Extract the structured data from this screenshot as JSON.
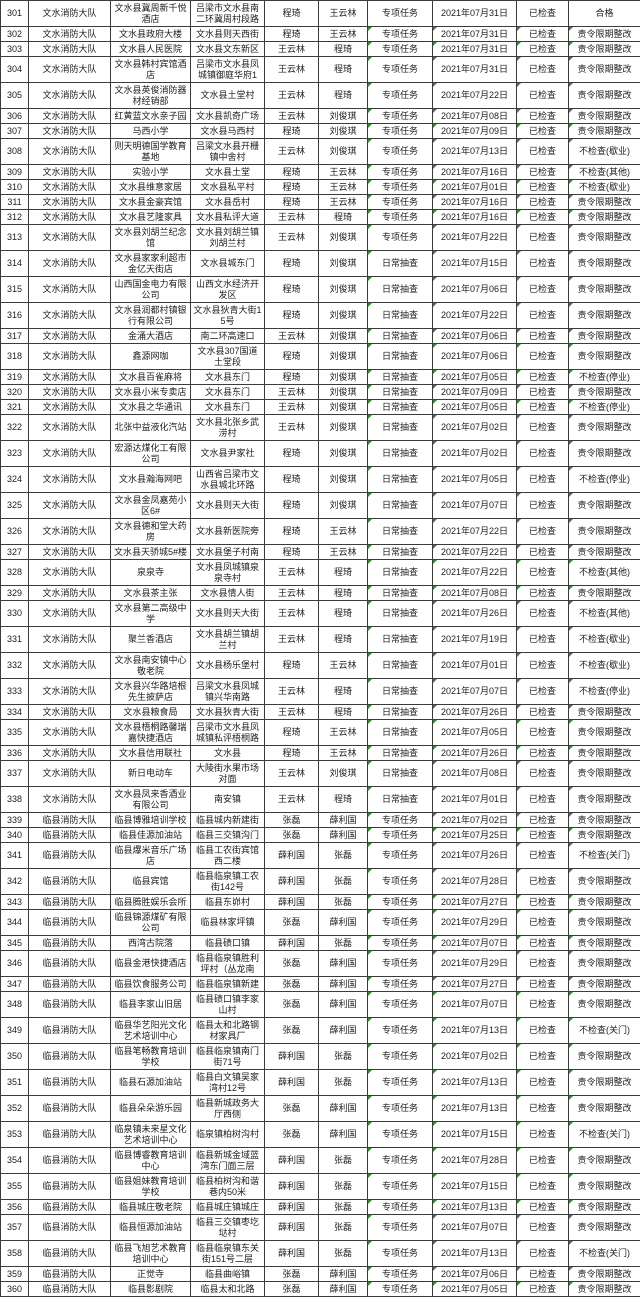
{
  "colors": {
    "border": "#3b3b3b",
    "text": "#1c1c1c",
    "flag_triangle_green": "#2e8b2e"
  },
  "table": {
    "row_fields": [
      "seq",
      "brigade",
      "unit_name",
      "address",
      "inspector1",
      "inspector2",
      "task_type",
      "date",
      "status",
      "result"
    ],
    "flagged_columns": [
      6,
      7,
      8,
      9
    ],
    "rows": [
      [
        "301",
        "文水消防大队",
        "文水县冀周新千悦酒店",
        "吕梁市文水县南二环冀周村段路",
        "程琦",
        "王云林",
        "专项任务",
        "2021年07月31日",
        "已检查",
        "合格"
      ],
      [
        "302",
        "文水消防大队",
        "文水县政府大楼",
        "文水县则天西街",
        "程琦",
        "王云林",
        "专项任务",
        "2021年07月31日",
        "已检查",
        "责令限期整改"
      ],
      [
        "303",
        "文水消防大队",
        "文水县人民医院",
        "文水县文东新区",
        "王云林",
        "程琦",
        "专项任务",
        "2021年07月31日",
        "已检查",
        "责令限期整改"
      ],
      [
        "304",
        "文水消防大队",
        "文水县韩村宾馆酒店",
        "吕梁市文水县凤城镇御庭华府1",
        "王云林",
        "程琦",
        "专项任务",
        "2021年07月31日",
        "已检查",
        "责令限期整改"
      ],
      [
        "305",
        "文水消防大队",
        "文水县英俊消防器材经销部",
        "文水县土堂村",
        "王云林",
        "程琦",
        "专项任务",
        "2021年07月22日",
        "已检查",
        "责令限期整改"
      ],
      [
        "306",
        "文水消防大队",
        "红黄蓝文水亲子园",
        "文水县凯奇广场",
        "王云林",
        "刘俊琪",
        "专项任务",
        "2021年07月08日",
        "已检查",
        "责令限期整改"
      ],
      [
        "307",
        "文水消防大队",
        "马西小学",
        "文水县马西村",
        "程琦",
        "刘俊琪",
        "专项任务",
        "2021年07月09日",
        "已检查",
        "责令限期整改"
      ],
      [
        "308",
        "文水消防大队",
        "则天明德国学教育基地",
        "吕梁文水县开栅镇中舍村",
        "王云林",
        "刘俊琪",
        "专项任务",
        "2021年07月13日",
        "已检查",
        "不检查(歇业)"
      ],
      [
        "309",
        "文水消防大队",
        "实验小学",
        "文水县土堂",
        "程琦",
        "王云林",
        "专项任务",
        "2021年07月16日",
        "已检查",
        "不检查(其他)"
      ],
      [
        "310",
        "文水消防大队",
        "文水县维意家居",
        "文水县私平村",
        "程琦",
        "王云林",
        "专项任务",
        "2021年07月01日",
        "已检查",
        "不检查(歇业)"
      ],
      [
        "311",
        "文水消防大队",
        "文水县金豪宾馆",
        "文水县岳村",
        "程琦",
        "王云林",
        "专项任务",
        "2021年07月16日",
        "已检查",
        "责令限期整改"
      ],
      [
        "312",
        "文水消防大队",
        "文水县艺隆家具",
        "文水县私评大道",
        "王云林",
        "程琦",
        "专项任务",
        "2021年07月16日",
        "已检查",
        "责令限期整改"
      ],
      [
        "313",
        "文水消防大队",
        "文水县刘胡兰纪念馆",
        "文水县刘胡兰镇刘胡兰村",
        "王云林",
        "刘俊琪",
        "专项任务",
        "2021年07月22日",
        "已检查",
        "责令限期整改"
      ],
      [
        "314",
        "文水消防大队",
        "文水县家家利超市金亿天街店",
        "文水县城东门",
        "程琦",
        "刘俊琪",
        "日常抽查",
        "2021年07月15日",
        "已检查",
        "责令限期整改"
      ],
      [
        "315",
        "文水消防大队",
        "山西国金电力有限公司",
        "山西文水经济开发区",
        "程琦",
        "刘俊琪",
        "日常抽查",
        "2021年07月06日",
        "已检查",
        "责令限期整改"
      ],
      [
        "316",
        "文水消防大队",
        "文水县润都村镇银行有限公司",
        "文水县狄青大街15号",
        "程琦",
        "刘俊琪",
        "日常抽查",
        "2021年07月22日",
        "已检查",
        "责令限期整改"
      ],
      [
        "317",
        "文水消防大队",
        "金涌大酒店",
        "南二环高速口",
        "王云林",
        "刘俊琪",
        "日常抽查",
        "2021年07月06日",
        "已检查",
        "责令限期整改"
      ],
      [
        "318",
        "文水消防大队",
        "鑫源网咖",
        "文水县307国道土堂段",
        "程琦",
        "刘俊琪",
        "日常抽查",
        "2021年07月06日",
        "已检查",
        "责令限期整改"
      ],
      [
        "319",
        "文水消防大队",
        "文水县百雀麻将",
        "文水县东门",
        "程琦",
        "刘俊琪",
        "日常抽查",
        "2021年07月05日",
        "已检查",
        "不检查(停业)"
      ],
      [
        "320",
        "文水消防大队",
        "文水县小米专卖店",
        "文水县东门",
        "王云林",
        "刘俊琪",
        "日常抽查",
        "2021年07月09日",
        "已检查",
        "责令限期整改"
      ],
      [
        "321",
        "文水消防大队",
        "文水县之华通讯",
        "文水县东门",
        "王云林",
        "刘俊琪",
        "日常抽查",
        "2021年07月05日",
        "已检查",
        "不检查(停业)"
      ],
      [
        "322",
        "文水消防大队",
        "北张中益液化汽站",
        "文水县北张乡武涝村",
        "王云林",
        "刘俊琪",
        "日常抽查",
        "2021年07月02日",
        "已检查",
        "责令限期整改"
      ],
      [
        "323",
        "文水消防大队",
        "宏源达煤化工有限公司",
        "文水县尹家社",
        "程琦",
        "刘俊琪",
        "日常抽查",
        "2021年07月02日",
        "已检查",
        "责令限期整改"
      ],
      [
        "324",
        "文水消防大队",
        "文水县瀚海网吧",
        "山西省吕梁市文水县城北环路",
        "程琦",
        "刘俊琪",
        "日常抽查",
        "2021年07月05日",
        "已检查",
        "不检查(停业)"
      ],
      [
        "325",
        "文水消防大队",
        "文水县金凤嘉苑小区6#",
        "文水县则天大街",
        "程琦",
        "刘俊琪",
        "日常抽查",
        "2021年07月07日",
        "已检查",
        "责令限期整改"
      ],
      [
        "326",
        "文水消防大队",
        "文水县德和堂大药房",
        "文水县新医院旁",
        "程琦",
        "王云林",
        "日常抽查",
        "2021年07月22日",
        "已检查",
        "责令限期整改"
      ],
      [
        "327",
        "文水消防大队",
        "文水县天骄城5#楼",
        "文水县堡子村南",
        "程琦",
        "王云林",
        "日常抽查",
        "2021年07月22日",
        "已检查",
        "责令限期整改"
      ],
      [
        "328",
        "文水消防大队",
        "泉泉寺",
        "文水县凤城镇泉泉寺村",
        "王云林",
        "程琦",
        "日常抽查",
        "2021年07月22日",
        "已检查",
        "不检查(其他)"
      ],
      [
        "329",
        "文水消防大队",
        "文水县茶主张",
        "文水县情人街",
        "王云林",
        "程琦",
        "日常抽查",
        "2021年07月08日",
        "已检查",
        "责令限期整改"
      ],
      [
        "330",
        "文水消防大队",
        "文水县第二高级中学",
        "文水县则天大街",
        "王云林",
        "程琦",
        "日常抽查",
        "2021年07月26日",
        "已检查",
        "不检查(其他)"
      ],
      [
        "331",
        "文水消防大队",
        "聚兰香酒店",
        "文水县胡兰镇胡兰村",
        "王云林",
        "程琦",
        "日常抽查",
        "2021年07月19日",
        "已检查",
        "不检查(歇业)"
      ],
      [
        "332",
        "文水消防大队",
        "文水县南安镇中心敬老院",
        "文水县杨乐堡村",
        "程琦",
        "王云林",
        "日常抽查",
        "2021年07月01日",
        "已检查",
        "不检查(歇业)"
      ],
      [
        "333",
        "文水消防大队",
        "文水县兴华路培根先生披萨店",
        "吕梁文水县凤城镇兴华南路",
        "王云林",
        "程琦",
        "日常抽查",
        "2021年07月07日",
        "已检查",
        "不检查(停业)"
      ],
      [
        "334",
        "文水消防大队",
        "文水县粮食局",
        "文水县狄青大街",
        "王云林",
        "程琦",
        "日常抽查",
        "2021年07月26日",
        "已检查",
        "责令限期整改"
      ],
      [
        "335",
        "文水消防大队",
        "文水县梧桐路馨瑞嘉快捷酒店",
        "吕梁市文水县凤城镇私评梧桐路",
        "程琦",
        "王云林",
        "日常抽查",
        "2021年07月05日",
        "已检查",
        "责令限期整改"
      ],
      [
        "336",
        "文水消防大队",
        "文水县信用联社",
        "文水县",
        "程琦",
        "王云林",
        "日常抽查",
        "2021年07月26日",
        "已检查",
        "责令限期整改"
      ],
      [
        "337",
        "文水消防大队",
        "新日电动车",
        "大陵街水果市场对面",
        "王云林",
        "刘俊琪",
        "日常抽查",
        "2021年07月08日",
        "已检查",
        "责令限期整改"
      ],
      [
        "338",
        "文水消防大队",
        "文水县凤来香酒业有限公司",
        "南安镇",
        "王云林",
        "程琦",
        "日常抽查",
        "2021年07月01日",
        "已检查",
        "责令限期整改"
      ],
      [
        "339",
        "临县消防大队",
        "临县博雅培训学校",
        "临县城内新建街",
        "张磊",
        "薛利国",
        "专项任务",
        "2021年07月02日",
        "已检查",
        "责令限期整改"
      ],
      [
        "340",
        "临县消防大队",
        "临县佳源加油站",
        "临县三交镇沟门",
        "张磊",
        "薛利国",
        "专项任务",
        "2021年07月25日",
        "已检查",
        "责令限期整改"
      ],
      [
        "341",
        "临县消防大队",
        "临县爆米音乐广场店",
        "临县工农街宾馆西二楼",
        "薛利国",
        "张磊",
        "专项任务",
        "2021年07月26日",
        "已检查",
        "不检查(关门)"
      ],
      [
        "342",
        "临县消防大队",
        "临县宾馆",
        "临县临泉镇工农街142号",
        "薛利国",
        "张磊",
        "专项任务",
        "2021年07月28日",
        "已检查",
        "责令限期整改"
      ],
      [
        "343",
        "临县消防大队",
        "临县腾胜娱乐会所",
        "临县东峁村",
        "薛利国",
        "张磊",
        "专项任务",
        "2021年07月27日",
        "已检查",
        "责令限期整改"
      ],
      [
        "344",
        "临县消防大队",
        "临县锦源煤矿有限公司",
        "临县林家坪镇",
        "张磊",
        "薛利国",
        "专项任务",
        "2021年07月29日",
        "已检查",
        "责令限期整改"
      ],
      [
        "345",
        "临县消防大队",
        "西湾古院落",
        "临县碛口镇",
        "薛利国",
        "张磊",
        "专项任务",
        "2021年07月07日",
        "已检查",
        "责令限期整改"
      ],
      [
        "346",
        "临县消防大队",
        "临县金港快捷酒店",
        "临县临泉镇胜利坪村（丛龙南",
        "张磊",
        "薛利国",
        "专项任务",
        "2021年07月29日",
        "已检查",
        "责令限期整改"
      ],
      [
        "347",
        "临县消防大队",
        "临县饮食服务公司",
        "临县临泉镇新建",
        "张磊",
        "薛利国",
        "专项任务",
        "2021年07月27日",
        "已检查",
        "责令限期整改"
      ],
      [
        "348",
        "临县消防大队",
        "临县李家山旧居",
        "临县碛口镇李家山村",
        "张磊",
        "薛利国",
        "专项任务",
        "2021年07月07日",
        "已检查",
        "责令限期整改"
      ],
      [
        "349",
        "临县消防大队",
        "临县华艺阳光文化艺术培训中心",
        "临县太和北路钢材家具厂",
        "张磊",
        "薛利国",
        "专项任务",
        "2021年07月13日",
        "已检查",
        "不检查(关门)"
      ],
      [
        "350",
        "临县消防大队",
        "临县笔畅教育培训学校",
        "临县临泉镇南门街71号",
        "薛利国",
        "张磊",
        "专项任务",
        "2021年07月02日",
        "已检查",
        "责令限期整改"
      ],
      [
        "351",
        "临县消防大队",
        "临县石源加油站",
        "临县白文镇吴家湾村12号",
        "薛利国",
        "张磊",
        "专项任务",
        "2021年07月13日",
        "已检查",
        "责令限期整改"
      ],
      [
        "352",
        "临县消防大队",
        "临县朵朵游乐园",
        "临县新城政务大厅西侧",
        "张磊",
        "薛利国",
        "专项任务",
        "2021年07月13日",
        "已检查",
        "责令限期整改"
      ],
      [
        "353",
        "临县消防大队",
        "临泉镇未来星文化艺术培训中心",
        "临泉镇柏树沟村",
        "张磊",
        "薛利国",
        "专项任务",
        "2021年07月15日",
        "已检查",
        "不检查(关门)"
      ],
      [
        "354",
        "临县消防大队",
        "临县博睿教育培训中心",
        "临县新城金域蓝湾东门面三层",
        "薛利国",
        "张磊",
        "专项任务",
        "2021年07月28日",
        "已检查",
        "责令限期整改"
      ],
      [
        "355",
        "临县消防大队",
        "临县姐妹教育培训学校",
        "临县柏树沟和谐巷内50米",
        "薛利国",
        "张磊",
        "专项任务",
        "2021年07月15日",
        "已检查",
        "责令限期整改"
      ],
      [
        "356",
        "临县消防大队",
        "临县城庄敬老院",
        "临县城庄镇城庄",
        "薛利国",
        "张磊",
        "专项任务",
        "2021年07月13日",
        "已检查",
        "责令限期整改"
      ],
      [
        "357",
        "临县消防大队",
        "临县恒源加油站",
        "临县三交镇枣圪垯村",
        "薛利国",
        "张磊",
        "专项任务",
        "2021年07月07日",
        "已检查",
        "责令限期整改"
      ],
      [
        "358",
        "临县消防大队",
        "临县飞旭艺术教育培训中心",
        "临县临泉镇东关街151号二层",
        "薛利国",
        "张磊",
        "专项任务",
        "2021年07月13日",
        "已检查",
        "不检查(关门)"
      ],
      [
        "359",
        "临县消防大队",
        "正觉寺",
        "临县曲峪镇",
        "张磊",
        "薛利国",
        "专项任务",
        "2021年07月06日",
        "已检查",
        "责令限期整改"
      ],
      [
        "360",
        "临县消防大队",
        "临县影剧院",
        "临县太和北路",
        "张磊",
        "薛利国",
        "专项任务",
        "2021年07月05日",
        "已检查",
        "责令限期整改"
      ]
    ]
  }
}
